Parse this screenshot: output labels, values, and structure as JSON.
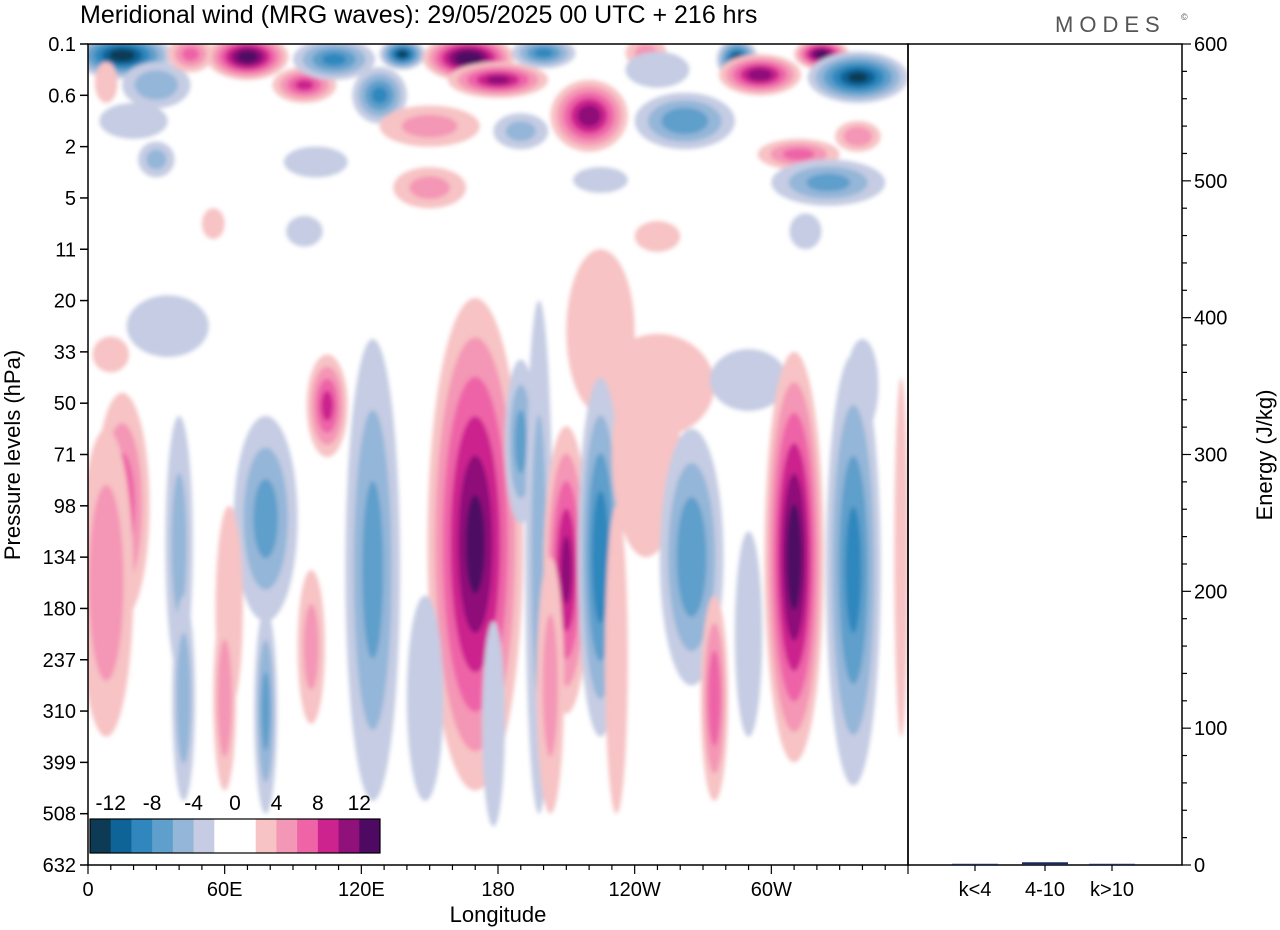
{
  "chart_data": {
    "type": "heatmap",
    "title": "Meridional wind (MRG waves):  29/05/2025  00 UTC  + 216 hrs",
    "logo": "MODES",
    "logo_mark": "©",
    "xlabel": "Longitude",
    "ylabel": "Pressure levels (hPa)",
    "x_ticks": [
      "0",
      "60E",
      "120E",
      "180",
      "120W",
      "60W"
    ],
    "x_tick_values": [
      0,
      60,
      120,
      180,
      240,
      300
    ],
    "xlim": [
      0,
      360
    ],
    "y_ticks": [
      "0.1",
      "0.6",
      "2",
      "5",
      "11",
      "20",
      "33",
      "50",
      "71",
      "98",
      "134",
      "180",
      "237",
      "310",
      "399",
      "508",
      "632"
    ],
    "colorbar": {
      "labels": [
        "-12",
        "-8",
        "-4",
        "0",
        "4",
        "8",
        "12"
      ],
      "levels": [
        -14,
        -12,
        -10,
        -8,
        -6,
        -4,
        -2,
        0,
        2,
        4,
        6,
        8,
        10,
        12,
        14
      ],
      "colors": [
        "#0d3a55",
        "#0f6497",
        "#2f87bd",
        "#5f9fcb",
        "#94b6d8",
        "#c5cce3",
        "#ffffff",
        "#ffffff",
        "#f7c3c4",
        "#f496b5",
        "#ee64a7",
        "#cc238e",
        "#8f1179",
        "#4e0a63"
      ]
    },
    "cells": [
      {
        "lon": 15,
        "lev": 0.45,
        "v": -13,
        "rx": 22,
        "ry": 0.45
      },
      {
        "lon": 8,
        "lev": 1.5,
        "v": 2,
        "rx": 5,
        "ry": 0.4
      },
      {
        "lon": 20,
        "lev": 3.0,
        "v": -2,
        "rx": 15,
        "ry": 0.35
      },
      {
        "lon": 30,
        "lev": 1.6,
        "v": -5,
        "rx": 15,
        "ry": 0.45
      },
      {
        "lon": 45,
        "lev": 0.4,
        "v": 6,
        "rx": 10,
        "ry": 0.35
      },
      {
        "lon": 70,
        "lev": 0.5,
        "v": 13,
        "rx": 18,
        "ry": 0.45
      },
      {
        "lon": 30,
        "lev": 4.5,
        "v": -4,
        "rx": 8,
        "ry": 0.35
      },
      {
        "lon": 95,
        "lev": 1.6,
        "v": 8,
        "rx": 14,
        "ry": 0.35
      },
      {
        "lon": 108,
        "lev": 0.6,
        "v": -8,
        "rx": 18,
        "ry": 0.4
      },
      {
        "lon": 138,
        "lev": 0.4,
        "v": -12,
        "rx": 10,
        "ry": 0.3
      },
      {
        "lon": 128,
        "lev": 2.0,
        "v": -8,
        "rx": 12,
        "ry": 0.55
      },
      {
        "lon": 100,
        "lev": 4.6,
        "v": -2,
        "rx": 14,
        "ry": 0.3
      },
      {
        "lon": 150,
        "lev": 3.2,
        "v": 4,
        "rx": 22,
        "ry": 0.4
      },
      {
        "lon": 150,
        "lev": 5.6,
        "v": 4,
        "rx": 16,
        "ry": 0.4
      },
      {
        "lon": 167,
        "lev": 0.55,
        "v": 14,
        "rx": 20,
        "ry": 0.45
      },
      {
        "lon": 180,
        "lev": 1.4,
        "v": 10,
        "rx": 22,
        "ry": 0.35
      },
      {
        "lon": 200,
        "lev": 0.35,
        "v": -8,
        "rx": 14,
        "ry": 0.3
      },
      {
        "lon": 190,
        "lev": 3.4,
        "v": -4,
        "rx": 12,
        "ry": 0.35
      },
      {
        "lon": 220,
        "lev": 2.8,
        "v": 11,
        "rx": 17,
        "ry": 0.7
      },
      {
        "lon": 225,
        "lev": 5.3,
        "v": -2,
        "rx": 12,
        "ry": 0.25
      },
      {
        "lon": 245,
        "lev": 0.35,
        "v": 4,
        "rx": 9,
        "ry": 0.3
      },
      {
        "lon": 250,
        "lev": 1.0,
        "v": -3,
        "rx": 14,
        "ry": 0.35
      },
      {
        "lon": 262,
        "lev": 3.0,
        "v": -7,
        "rx": 22,
        "ry": 0.55
      },
      {
        "lon": 285,
        "lev": 0.6,
        "v": -12,
        "rx": 9,
        "ry": 0.4
      },
      {
        "lon": 295,
        "lev": 1.2,
        "v": 11,
        "rx": 18,
        "ry": 0.4
      },
      {
        "lon": 322,
        "lev": 0.4,
        "v": 13,
        "rx": 12,
        "ry": 0.3
      },
      {
        "lon": 338,
        "lev": 1.3,
        "v": -12,
        "rx": 22,
        "ry": 0.5
      },
      {
        "lon": 312,
        "lev": 4.3,
        "v": 6,
        "rx": 18,
        "ry": 0.3
      },
      {
        "lon": 338,
        "lev": 3.6,
        "v": 5,
        "rx": 10,
        "ry": 0.3
      },
      {
        "lon": 325,
        "lev": 5.4,
        "v": -6,
        "rx": 25,
        "ry": 0.45
      },
      {
        "lon": 315,
        "lev": 7.3,
        "v": -3,
        "rx": 7,
        "ry": 0.35
      },
      {
        "lon": 55,
        "lev": 7.0,
        "v": 3,
        "rx": 5,
        "ry": 0.3
      },
      {
        "lon": 95,
        "lev": 7.3,
        "v": -3,
        "rx": 8,
        "ry": 0.3
      },
      {
        "lon": 250,
        "lev": 7.5,
        "v": 3,
        "rx": 10,
        "ry": 0.3
      },
      {
        "lon": 35,
        "lev": 11.0,
        "v": -3,
        "rx": 18,
        "ry": 0.6
      },
      {
        "lon": 10,
        "lev": 12.1,
        "v": 3,
        "rx": 8,
        "ry": 0.35
      },
      {
        "lon": 225,
        "lev": 11.2,
        "v": 3,
        "rx": 15,
        "ry": 1.6
      },
      {
        "lon": 250,
        "lev": 13.3,
        "v": 3,
        "rx": 25,
        "ry": 1.0
      },
      {
        "lon": 290,
        "lev": 13.1,
        "v": -3,
        "rx": 17,
        "ry": 0.6
      },
      {
        "lon": 340,
        "lev": 13.3,
        "v": -3,
        "rx": 7,
        "ry": 0.9
      },
      {
        "lon": 105,
        "lev": 14.1,
        "v": 8,
        "rx": 9,
        "ry": 1.0
      },
      {
        "lon": 125,
        "lev": 15.6,
        "v": -3,
        "rx": 7,
        "ry": 1.5
      },
      {
        "lon": 15,
        "lev": 18.0,
        "v": 7,
        "rx": 12,
        "ry": 2.2
      },
      {
        "lon": 8,
        "lev": 21.0,
        "v": 5,
        "rx": 12,
        "ry": 3.0
      },
      {
        "lon": 40,
        "lev": 19.5,
        "v": -4,
        "rx": 6,
        "ry": 2.5
      },
      {
        "lon": 78,
        "lev": 18.5,
        "v": -6,
        "rx": 14,
        "ry": 2.0
      },
      {
        "lon": 62,
        "lev": 22.0,
        "v": 3,
        "rx": 6,
        "ry": 2.0
      },
      {
        "lon": 125,
        "lev": 20.5,
        "v": -6,
        "rx": 12,
        "ry": 4.5
      },
      {
        "lon": 170,
        "lev": 19.5,
        "v": 12,
        "rx": 21,
        "ry": 4.8
      },
      {
        "lon": 190,
        "lev": 15.5,
        "v": -6,
        "rx": 7,
        "ry": 1.6
      },
      {
        "lon": 198,
        "lev": 20.0,
        "v": -4,
        "rx": 6,
        "ry": 5.0
      },
      {
        "lon": 210,
        "lev": 20.5,
        "v": 10,
        "rx": 10,
        "ry": 2.8
      },
      {
        "lon": 203,
        "lev": 25.0,
        "v": 4,
        "rx": 6,
        "ry": 2.5
      },
      {
        "lon": 225,
        "lev": 20.0,
        "v": -9,
        "rx": 10,
        "ry": 3.5
      },
      {
        "lon": 232,
        "lev": 24.0,
        "v": 3,
        "rx": 5,
        "ry": 3.0
      },
      {
        "lon": 245,
        "lev": 16.0,
        "v": 3,
        "rx": 15,
        "ry": 2.0
      },
      {
        "lon": 265,
        "lev": 20.0,
        "v": -7,
        "rx": 14,
        "ry": 2.5
      },
      {
        "lon": 275,
        "lev": 25.5,
        "v": 7,
        "rx": 6,
        "ry": 2.0
      },
      {
        "lon": 290,
        "lev": 23.0,
        "v": -3,
        "rx": 6,
        "ry": 2.0
      },
      {
        "lon": 310,
        "lev": 20.0,
        "v": 13,
        "rx": 13,
        "ry": 4.0
      },
      {
        "lon": 336,
        "lev": 20.5,
        "v": -8,
        "rx": 12,
        "ry": 4.2
      },
      {
        "lon": 357,
        "lev": 20.0,
        "v": 3,
        "rx": 3,
        "ry": 3.5
      },
      {
        "lon": 42,
        "lev": 25.5,
        "v": -5,
        "rx": 5,
        "ry": 2.0
      },
      {
        "lon": 60,
        "lev": 25.5,
        "v": 5,
        "rx": 5,
        "ry": 1.8
      },
      {
        "lon": 78,
        "lev": 26.0,
        "v": -6,
        "rx": 5,
        "ry": 2.0
      },
      {
        "lon": 98,
        "lev": 23.5,
        "v": 4,
        "rx": 6,
        "ry": 1.5
      },
      {
        "lon": 148,
        "lev": 25.5,
        "v": -3,
        "rx": 8,
        "ry": 2.0
      },
      {
        "lon": 178,
        "lev": 26.5,
        "v": -3,
        "rx": 5,
        "ry": 2.0
      }
    ],
    "energy_panel": {
      "ylabel": "Energy (J/kg)",
      "ylim": [
        0,
        600
      ],
      "y_ticks": [
        0,
        100,
        200,
        300,
        400,
        500,
        600
      ],
      "categories": [
        "k<4",
        "4-10",
        "k>10"
      ],
      "values": [
        0.5,
        2,
        0.3
      ],
      "bar_color": "#1a2a5a"
    }
  }
}
